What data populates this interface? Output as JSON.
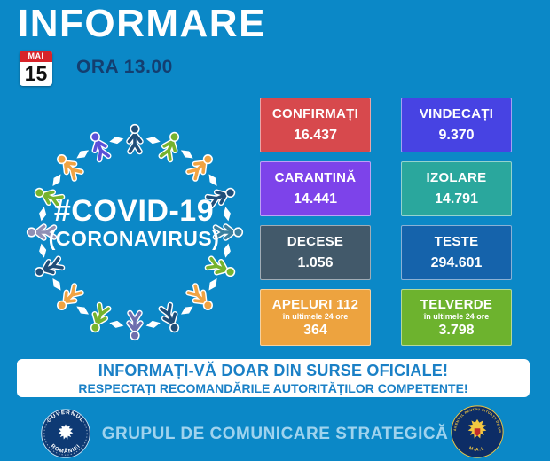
{
  "header": {
    "title": "INFORMARE",
    "date_month": "MAI",
    "date_day": "15",
    "time_label": "ORA 13.00"
  },
  "illustration": {
    "hashtag": "#COVID-19",
    "subtitle": "(CORONAVIRUS)",
    "figure_colors": [
      "#1f4e79",
      "#76b32e",
      "#f0a342",
      "#1f4e79",
      "#3a7f9e",
      "#76b32e",
      "#f0a342",
      "#1f4e79",
      "#6e6fae",
      "#76b32e",
      "#f0a342",
      "#1f4e79",
      "#8f8fb5",
      "#76b32e",
      "#f0a342",
      "#5a50d8"
    ],
    "arrow_color": "#ffffff"
  },
  "stats": [
    {
      "label": "CONFIRMAȚI",
      "value": "16.437",
      "color": "#d7494d",
      "sublabel": ""
    },
    {
      "label": "VINDECAȚI",
      "value": "9.370",
      "color": "#4743e3",
      "sublabel": ""
    },
    {
      "label": "CARANTINĂ",
      "value": "14.441",
      "color": "#7d43ea",
      "sublabel": ""
    },
    {
      "label": "IZOLARE",
      "value": "14.791",
      "color": "#2aa79d",
      "sublabel": ""
    },
    {
      "label": "DECESE",
      "value": "1.056",
      "color": "#42596a",
      "sublabel": ""
    },
    {
      "label": "TESTE",
      "value": "294.601",
      "color": "#1563ab",
      "sublabel": ""
    },
    {
      "label": "APELURI 112",
      "value": "364",
      "color": "#eda33f",
      "sublabel": "în ultimele 24 ore"
    },
    {
      "label": "TELVERDE",
      "value": "3.798",
      "color": "#6db32e",
      "sublabel": "în ultimele 24 ore"
    }
  ],
  "banner": {
    "line1": "INFORMAȚI-VĂ DOAR DIN SURSE OFICIALE!",
    "line2": "RESPECTAȚI RECOMANDĂRILE AUTORITĂȚILOR COMPETENTE!"
  },
  "footer": {
    "title": "GRUPUL DE COMUNICARE STRATEGICĂ",
    "left_seal": {
      "top_text": "GUVERNUL",
      "bottom_text": "ROMÂNIEI"
    },
    "right_seal": {
      "ring_text": "DEPARTAMENTUL PENTRU SITUAȚII DE URGENȚĂ",
      "bottom_text": "M.A.I."
    }
  },
  "icons": {
    "calendar": "calendar-icon",
    "person_figure": "person-figure-icon",
    "double_arrow": "double-arrow-icon",
    "government_seal": "government-of-romania-seal-icon",
    "dsu_seal": "emergency-department-seal-icon"
  },
  "colors": {
    "background": "#0b88c7",
    "title_text": "#ffffff",
    "time_text": "#133e70",
    "calendar_red": "#d8232a",
    "banner_text": "#1a80c6",
    "footer_text": "#9fd3ee"
  }
}
